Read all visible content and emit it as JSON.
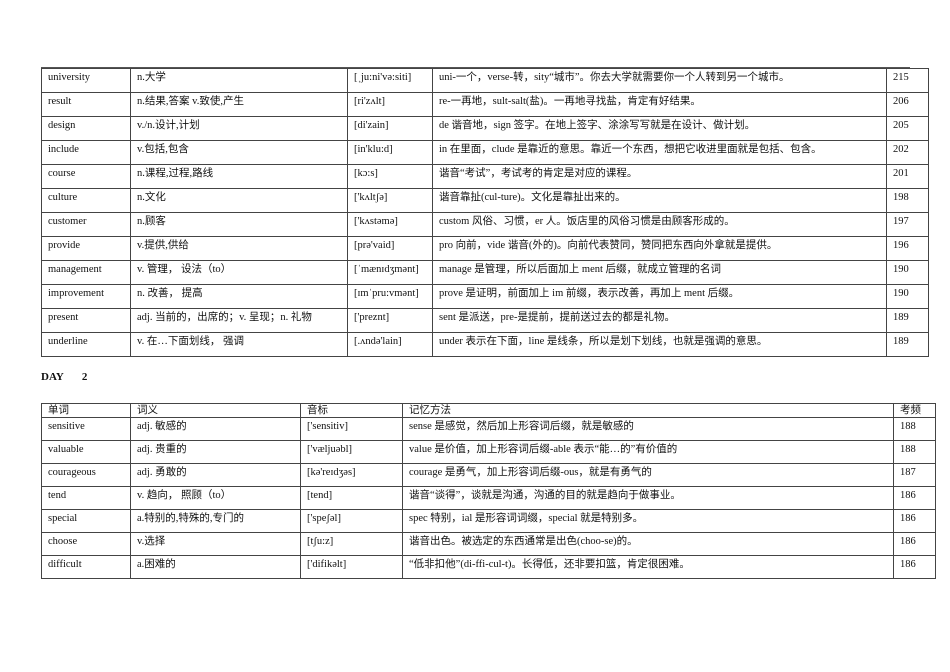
{
  "table1": {
    "rows": [
      {
        "word": "university",
        "meaning": "n.大学",
        "phonetic": "[ˌju:ni'və:siti]",
        "method": "uni-一个，verse-转，sity“城市”。你去大学就需要你一个人转到另一个城市。",
        "freq": "215"
      },
      {
        "word": "result",
        "meaning": "n.结果,答案 v.致使,产生",
        "phonetic": "[ri'zʌlt]",
        "method": "re-一再地，sult-salt(盐)。一再地寻找盐，肯定有好结果。",
        "freq": "206"
      },
      {
        "word": "design",
        "meaning": "v./n.设计,计划",
        "phonetic": "[di'zain]",
        "method": "de 谐音地，sign 签字。在地上签字、涂涂写写就是在设计、做计划。",
        "freq": "205"
      },
      {
        "word": "include",
        "meaning": "v.包括,包含",
        "phonetic": "[in'klu:d]",
        "method": "in 在里面，clude 是靠近的意思。靠近一个东西，想把它收进里面就是包括、包含。",
        "freq": "202"
      },
      {
        "word": "course",
        "meaning": "n.课程,过程,路线",
        "phonetic": "[kɔ:s]",
        "method": "谐音“考试”，考试考的肯定是对应的课程。",
        "freq": "201"
      },
      {
        "word": "culture",
        "meaning": "n.文化",
        "phonetic": "['kʌltʃə]",
        "method": "谐音靠扯(cul-ture)。文化是靠扯出来的。",
        "freq": "198"
      },
      {
        "word": "customer",
        "meaning": "n.顾客",
        "phonetic": "['kʌstəmə]",
        "method": "custom 风俗、习惯，er 人。饭店里的风俗习惯是由顾客形成的。",
        "freq": "197"
      },
      {
        "word": "provide",
        "meaning": "v.提供,供给",
        "phonetic": "[prə'vaid]",
        "method": "pro 向前，vide 谐音(外的)。向前代表赞同，赞同把东西向外拿就是提供。",
        "freq": "196"
      },
      {
        "word": "management",
        "meaning": "v. 管理， 设法（to）",
        "phonetic": "[ˈmænɪdʒmənt]",
        "method": "manage 是管理，所以后面加上 ment 后缀，就成立管理的名词",
        "freq": "190"
      },
      {
        "word": "improvement",
        "meaning": "n. 改善， 提高",
        "phonetic": "[ɪmˈpru:vmənt]",
        "method": "prove 是证明，前面加上 im 前缀，表示改善，再加上 ment 后缀。",
        "freq": "190"
      },
      {
        "word": "present",
        "meaning": "adj. 当前的，出席的；v. 呈现；n. 礼物",
        "phonetic": "['preznt]",
        "method": "sent 是派送，pre-是提前，提前送过去的都是礼物。",
        "freq": "189"
      },
      {
        "word": "underline",
        "meaning": "v. 在…下面划线， 强调",
        "phonetic": "[.ʌndə'lain]",
        "method": "under 表示在下面，line 是线条，所以是划下划线，也就是强调的意思。",
        "freq": "189"
      }
    ]
  },
  "day": {
    "label": "DAY",
    "number": "2"
  },
  "table2": {
    "headers": {
      "word": "单词",
      "meaning": "词义",
      "phonetic": "音标",
      "method": "记忆方法",
      "freq": "考频"
    },
    "rows": [
      {
        "word": "sensitive",
        "meaning": "adj. 敏感的",
        "phonetic": "['sensitiv]",
        "method": "sense 是感觉，然后加上形容词后缀，就是敏感的",
        "freq": "188"
      },
      {
        "word": "valuable",
        "meaning": "adj. 贵重的",
        "phonetic": "['væljuəbl]",
        "method": "value 是价值，加上形容词后缀-able 表示“能…的”有价值的",
        "freq": "188"
      },
      {
        "word": "courageous",
        "meaning": "adj. 勇敢的",
        "phonetic": "[kə'reɪdʒəs]",
        "method": "courage 是勇气，加上形容词后缀-ous，就是有勇气的",
        "freq": "187"
      },
      {
        "word": "tend",
        "meaning": "v. 趋向， 照顾（to）",
        "phonetic": "[tend]",
        "method": "谐音“谈得”，谈就是沟通，沟通的目的就是趋向于做事业。",
        "freq": "186"
      },
      {
        "word": "special",
        "meaning": "a.特别的,特殊的,专门的",
        "phonetic": "['speʃəl]",
        "method": "spec 特别，ial 是形容词词缀，special 就是特别多。",
        "freq": "186"
      },
      {
        "word": "choose",
        "meaning": "v.选择",
        "phonetic": "[tʃu:z]",
        "method": "谐音出色。被选定的东西通常是出色(choo-se)的。",
        "freq": "186"
      },
      {
        "word": "difficult",
        "meaning": "a.困难的",
        "phonetic": "['difikəlt]",
        "method": "“低非扣他”(di-ffi-cul-t)。长得低，还非要扣篮，肯定很困难。",
        "freq": "186"
      }
    ]
  }
}
